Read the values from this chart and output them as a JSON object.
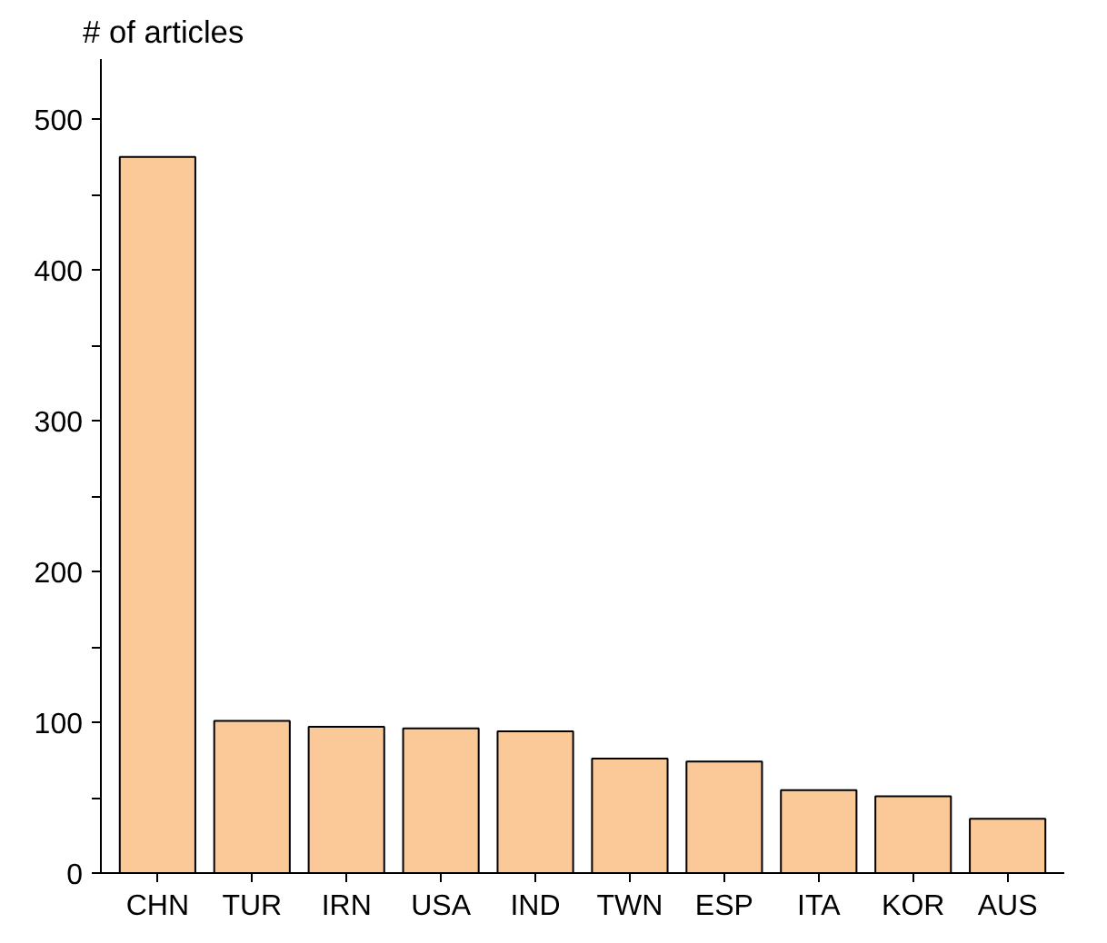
{
  "chart_data": {
    "type": "bar",
    "ylabel": "# of articles",
    "categories": [
      "CHN",
      "TUR",
      "IRN",
      "USA",
      "IND",
      "TWN",
      "ESP",
      "ITA",
      "KOR",
      "AUS"
    ],
    "values": [
      475,
      101,
      97,
      96,
      94,
      76,
      74,
      55,
      51,
      36
    ],
    "color": "#fbc898",
    "ylim": [
      0,
      540
    ],
    "yticks": [
      0,
      {
        "value": 50,
        "label": null
      },
      100,
      {
        "value": 150,
        "label": null
      },
      200,
      {
        "value": 250,
        "label": null
      },
      300,
      {
        "value": 350,
        "label": null
      },
      400,
      {
        "value": 450,
        "label": null
      },
      500
    ],
    "grid": false
  }
}
